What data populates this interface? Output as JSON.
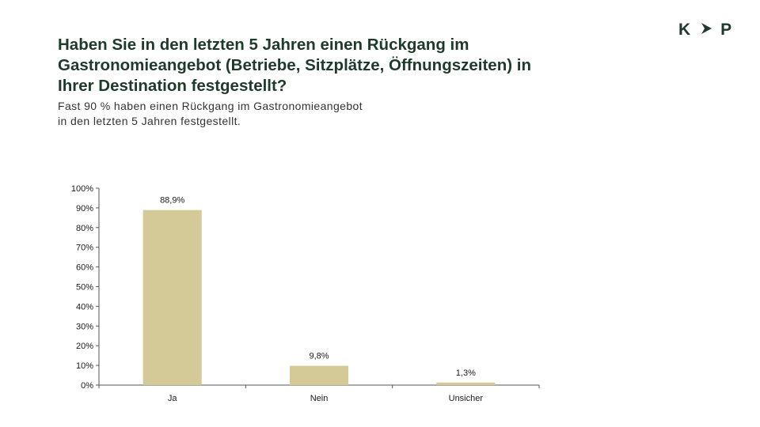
{
  "logo": {
    "left": "K",
    "right": "P",
    "arrow_icon": "chevron-right-icon",
    "color": "#1e3a2a"
  },
  "title": "Haben Sie in den letzten 5 Jahren einen Rückgang im Gastronomieangebot (Betriebe, Sitzplätze, Öffnungszeiten) in Ihrer Destination festgestellt?",
  "subtitle": {
    "line1": "Fast 90 % haben einen Rückgang im Gastronomieangebot",
    "line2": "in den letzten 5 Jahren festgestellt."
  },
  "chart_data": {
    "type": "bar",
    "categories": [
      "Ja",
      "Nein",
      "Unsicher"
    ],
    "values": [
      88.9,
      9.8,
      1.3
    ],
    "data_labels": [
      "88,9%",
      "9,8%",
      "1,3%"
    ],
    "yticks": [
      "0%",
      "10%",
      "20%",
      "30%",
      "40%",
      "50%",
      "60%",
      "70%",
      "80%",
      "90%",
      "100%"
    ],
    "ylim": [
      0,
      100
    ],
    "grid": false,
    "bar_color": "#d4ca98"
  }
}
